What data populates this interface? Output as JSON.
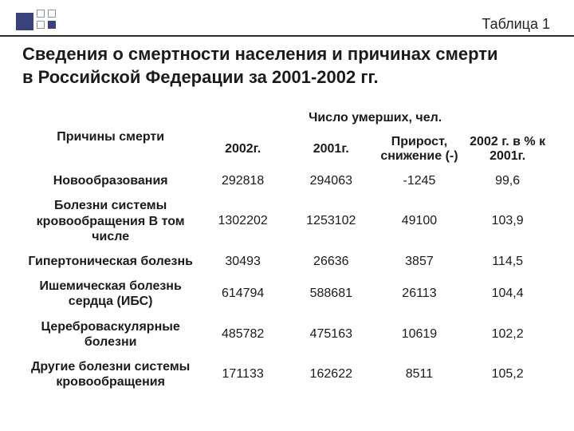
{
  "decor": {
    "accent_color": "#39427a",
    "outline_color": "#90949e",
    "rule_color": "#2e2e2e"
  },
  "table_label": "Таблица 1",
  "title_line1": "Сведения о смертности населения и причинах смерти",
  "title_line2": "в Российской Федерации за 2001-2002 гг.",
  "header": {
    "cause": "Причины смерти",
    "group": "Число умерших, чел.",
    "c2002": "2002г.",
    "c2001": "2001г.",
    "delta": "Прирост, снижение (-)",
    "pct": "2002 г. в % к 2001г."
  },
  "rows": [
    {
      "cause": "Новообразования",
      "v2002": "292818",
      "v2001": "294063",
      "delta": "-1245",
      "pct": "99,6"
    },
    {
      "cause": "Болезни системы кровообращения В том числе",
      "v2002": "1302202",
      "v2001": "1253102",
      "delta": "49100",
      "pct": "103,9"
    },
    {
      "cause": "Гипертоническая болезнь",
      "v2002": "30493",
      "v2001": "26636",
      "delta": "3857",
      "pct": "114,5"
    },
    {
      "cause": "Ишемическая болезнь сердца (ИБС)",
      "v2002": "614794",
      "v2001": "588681",
      "delta": "26113",
      "pct": "104,4"
    },
    {
      "cause": "Цереброваскулярные болезни",
      "v2002": "485782",
      "v2001": "475163",
      "delta": "10619",
      "pct": "102,2"
    },
    {
      "cause": "Другие болезни системы кровообращения",
      "v2002": "171133",
      "v2001": "162622",
      "delta": "8511",
      "pct": "105,2"
    }
  ]
}
